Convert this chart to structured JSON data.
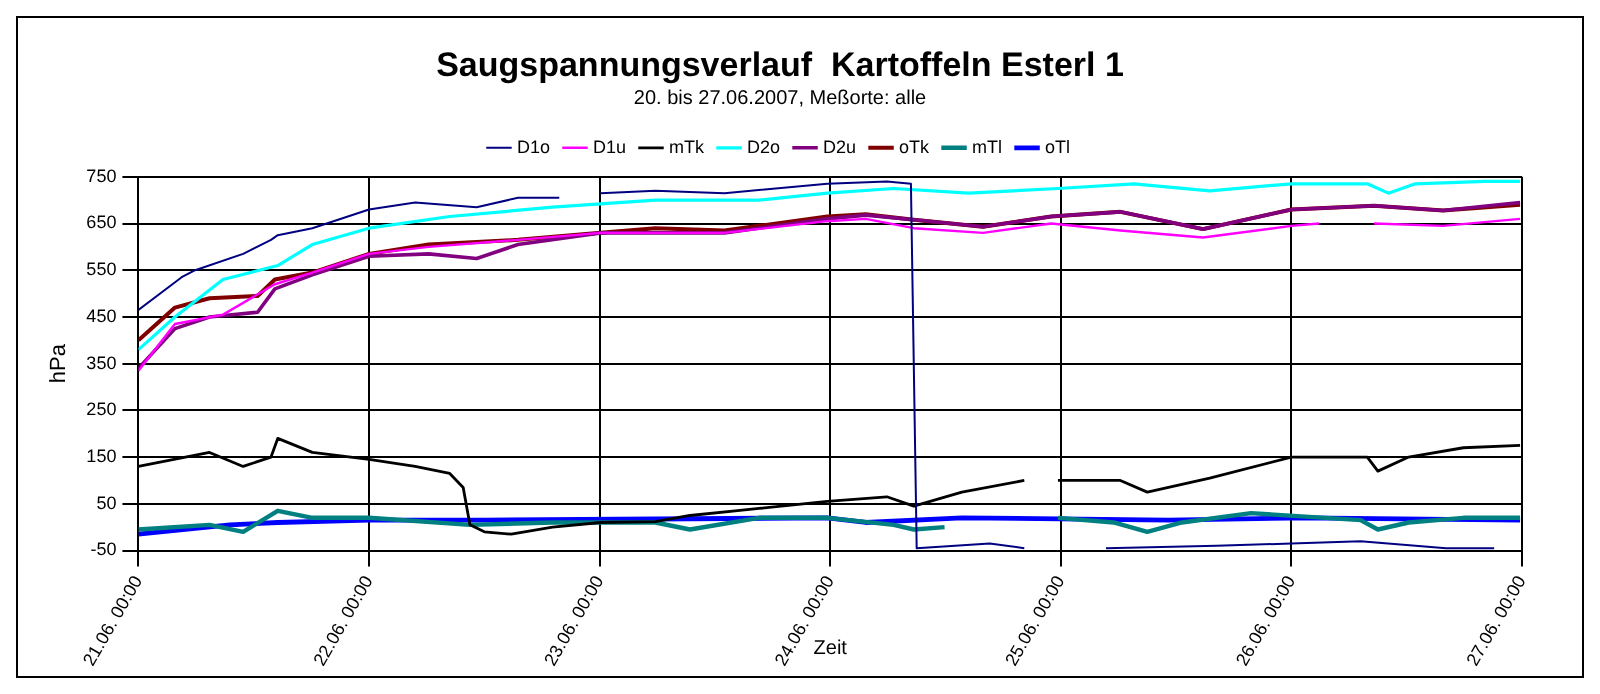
{
  "chart_data": {
    "type": "line",
    "title": "Saugspannungsverlauf  Kartoffeln Esterl 1",
    "subtitle": "20. bis 27.06.2007, Meßorte: alle",
    "xlabel": "Zeit",
    "ylabel": "hPa",
    "xlim": [
      "2007-06-21T00:00",
      "2007-06-27T00:00"
    ],
    "xticks": [
      {
        "value": "2007-06-21T00:00",
        "label": "21.06. 00:00"
      },
      {
        "value": "2007-06-22T00:00",
        "label": "22.06. 00:00"
      },
      {
        "value": "2007-06-23T00:00",
        "label": "23.06. 00:00"
      },
      {
        "value": "2007-06-24T00:00",
        "label": "24.06. 00:00"
      },
      {
        "value": "2007-06-25T00:00",
        "label": "25.06. 00:00"
      },
      {
        "value": "2007-06-26T00:00",
        "label": "26.06. 00:00"
      },
      {
        "value": "2007-06-27T00:00",
        "label": "27.06. 00:00"
      }
    ],
    "ylim": [
      -50,
      750
    ],
    "yticks": [
      -50,
      50,
      150,
      250,
      350,
      450,
      550,
      650,
      750
    ],
    "grid": true,
    "legend": "top",
    "line_style": "solid",
    "marker": "none",
    "series": [
      {
        "name": "D1o",
        "color": "#000080",
        "x": [
          "2007-06-21T00:00",
          "2007-06-21T04:30",
          "2007-06-21T05:54",
          "2007-06-21T10:54",
          "2007-06-21T13:48",
          "2007-06-21T14:30",
          "2007-06-21T18:06",
          "2007-06-22T00:00",
          "2007-06-22T04:48",
          "2007-06-22T11:12",
          "2007-06-22T15:30",
          "2007-06-22T19:48",
          "2007-06-22T22:00",
          "2007-06-23T00:06",
          "2007-06-23T05:48",
          "2007-06-23T13:00",
          "2007-06-23T23:42",
          "2007-06-24T05:54",
          "2007-06-24T08:24",
          "2007-06-24T09:00",
          "2007-06-24T16:36",
          "2007-06-24T20:12",
          "2007-06-25T00:30",
          "2007-06-25T04:42",
          "2007-06-25T16:12",
          "2007-06-26T00:00",
          "2007-06-26T07:12",
          "2007-06-26T16:06",
          "2007-06-26T21:06"
        ],
        "values": [
          465,
          535,
          550,
          585,
          615,
          625,
          640,
          680,
          695,
          685,
          705,
          705,
          null,
          715,
          720,
          715,
          735,
          740,
          735,
          -45,
          -35,
          -45,
          null,
          -45,
          -40,
          -35,
          -30,
          -45,
          -45
        ]
      },
      {
        "name": "D1u",
        "color": "#ff00ff",
        "x": [
          "2007-06-21T00:00",
          "2007-06-21T03:48",
          "2007-06-21T08:48",
          "2007-06-21T14:12",
          "2007-06-21T18:06",
          "2007-06-22T00:00",
          "2007-06-22T06:12",
          "2007-06-22T15:30",
          "2007-06-23T00:06",
          "2007-06-23T13:00",
          "2007-06-23T23:42",
          "2007-06-24T03:42",
          "2007-06-24T08:42",
          "2007-06-24T15:54",
          "2007-06-24T23:00",
          "2007-06-25T06:12",
          "2007-06-25T14:48",
          "2007-06-26T00:00",
          "2007-06-26T02:54",
          "2007-06-26T05:30",
          "2007-06-26T08:36",
          "2007-06-26T15:48",
          "2007-06-26T23:48"
        ],
        "values": [
          335,
          435,
          455,
          520,
          545,
          585,
          600,
          615,
          630,
          630,
          655,
          660,
          640,
          630,
          650,
          635,
          620,
          645,
          650,
          null,
          650,
          645,
          660
        ]
      },
      {
        "name": "mTk",
        "color": "#000000",
        "x": [
          "2007-06-21T00:00",
          "2007-06-21T07:24",
          "2007-06-21T10:54",
          "2007-06-21T13:48",
          "2007-06-21T14:30",
          "2007-06-21T18:06",
          "2007-06-22T00:00",
          "2007-06-22T04:48",
          "2007-06-22T08:24",
          "2007-06-22T09:48",
          "2007-06-22T10:30",
          "2007-06-22T12:00",
          "2007-06-22T14:48",
          "2007-06-22T19:06",
          "2007-06-23T00:06",
          "2007-06-23T05:48",
          "2007-06-23T09:24",
          "2007-06-23T16:36",
          "2007-06-23T23:42",
          "2007-06-24T05:54",
          "2007-06-24T08:42",
          "2007-06-24T13:42",
          "2007-06-24T20:12",
          "2007-06-24T22:00",
          "2007-06-24T23:42",
          "2007-06-25T06:12",
          "2007-06-25T09:00",
          "2007-06-25T15:30",
          "2007-06-26T00:00",
          "2007-06-26T07:54",
          "2007-06-26T09:00",
          "2007-06-26T12:12",
          "2007-06-26T17:54",
          "2007-06-26T23:48"
        ],
        "values": [
          130,
          160,
          130,
          150,
          190,
          160,
          145,
          130,
          115,
          85,
          5,
          -10,
          -15,
          0,
          10,
          12,
          25,
          40,
          55,
          65,
          45,
          75,
          100,
          null,
          100,
          100,
          75,
          105,
          150,
          150,
          120,
          150,
          170,
          175
        ]
      },
      {
        "name": "D2o",
        "color": "#00ffff",
        "x": [
          "2007-06-21T00:00",
          "2007-06-21T03:48",
          "2007-06-21T08:48",
          "2007-06-21T14:30",
          "2007-06-21T18:06",
          "2007-06-22T00:00",
          "2007-06-22T08:24",
          "2007-06-22T19:06",
          "2007-06-23T05:48",
          "2007-06-23T16:36",
          "2007-06-23T23:42",
          "2007-06-24T06:36",
          "2007-06-24T14:24",
          "2007-06-24T23:42",
          "2007-06-25T07:36",
          "2007-06-25T15:30",
          "2007-06-26T00:00",
          "2007-06-26T07:54",
          "2007-06-26T10:06",
          "2007-06-26T12:54",
          "2007-06-26T20:06",
          "2007-06-26T23:48"
        ],
        "values": [
          380,
          450,
          530,
          560,
          605,
          640,
          665,
          685,
          700,
          700,
          715,
          725,
          715,
          725,
          735,
          720,
          735,
          735,
          715,
          735,
          740,
          740
        ]
      },
      {
        "name": "D2u",
        "color": "#800080",
        "x": [
          "2007-06-21T00:00",
          "2007-06-21T03:48",
          "2007-06-21T07:24",
          "2007-06-21T12:24",
          "2007-06-21T14:12",
          "2007-06-21T18:06",
          "2007-06-22T00:00",
          "2007-06-22T06:12",
          "2007-06-22T11:12",
          "2007-06-22T15:30",
          "2007-06-23T00:06",
          "2007-06-23T13:00",
          "2007-06-23T23:42",
          "2007-06-24T03:42",
          "2007-06-24T08:42",
          "2007-06-24T15:54",
          "2007-06-24T23:00",
          "2007-06-25T06:12",
          "2007-06-25T14:48",
          "2007-06-26T00:00",
          "2007-06-26T08:36",
          "2007-06-26T15:48",
          "2007-06-26T23:48"
        ],
        "values": [
          340,
          425,
          450,
          460,
          510,
          540,
          580,
          585,
          575,
          605,
          630,
          630,
          660,
          668,
          658,
          643,
          665,
          675,
          638,
          680,
          688,
          678,
          695
        ]
      },
      {
        "name": "oTk",
        "color": "#800000",
        "x": [
          "2007-06-21T00:00",
          "2007-06-21T03:48",
          "2007-06-21T07:24",
          "2007-06-21T12:24",
          "2007-06-21T14:12",
          "2007-06-21T18:06",
          "2007-06-22T00:00",
          "2007-06-22T06:12",
          "2007-06-22T15:30",
          "2007-06-23T00:06",
          "2007-06-23T05:48",
          "2007-06-23T13:00",
          "2007-06-23T23:42",
          "2007-06-24T03:42",
          "2007-06-24T08:42",
          "2007-06-24T15:54",
          "2007-06-24T23:00",
          "2007-06-25T06:12",
          "2007-06-25T14:48",
          "2007-06-26T00:00",
          "2007-06-26T08:36",
          "2007-06-26T15:48",
          "2007-06-26T23:48"
        ],
        "values": [
          400,
          470,
          490,
          495,
          530,
          545,
          585,
          605,
          615,
          630,
          640,
          635,
          665,
          670,
          658,
          643,
          665,
          675,
          638,
          680,
          688,
          678,
          690
        ]
      },
      {
        "name": "mTl",
        "color": "#008080",
        "x": [
          "2007-06-21T00:00",
          "2007-06-21T07:24",
          "2007-06-21T10:54",
          "2007-06-21T14:30",
          "2007-06-21T18:06",
          "2007-06-22T00:00",
          "2007-06-22T10:30",
          "2007-06-22T19:06",
          "2007-06-23T05:48",
          "2007-06-23T09:24",
          "2007-06-23T16:36",
          "2007-06-23T23:42",
          "2007-06-24T06:36",
          "2007-06-24T08:42",
          "2007-06-24T11:54",
          "2007-06-24T18:00",
          "2007-06-24T23:42",
          "2007-06-25T05:30",
          "2007-06-25T09:00",
          "2007-06-25T12:36",
          "2007-06-25T19:48",
          "2007-06-26T07:12",
          "2007-06-26T09:00",
          "2007-06-26T12:12",
          "2007-06-26T17:54",
          "2007-06-26T23:48"
        ],
        "values": [
          -5,
          5,
          -10,
          35,
          20,
          20,
          5,
          10,
          10,
          -5,
          20,
          20,
          5,
          -5,
          0,
          null,
          20,
          10,
          -10,
          10,
          30,
          15,
          -5,
          10,
          20,
          20
        ]
      },
      {
        "name": "oTl",
        "color": "#0000ff",
        "x": [
          "2007-06-21T00:00",
          "2007-06-21T09:30",
          "2007-06-21T14:30",
          "2007-06-22T00:00",
          "2007-06-22T12:00",
          "2007-06-23T23:42",
          "2007-06-24T03:42",
          "2007-06-24T13:42",
          "2007-06-25T11:12",
          "2007-06-26T01:30",
          "2007-06-26T23:48"
        ],
        "values": [
          -15,
          5,
          10,
          15,
          15,
          20,
          10,
          20,
          15,
          20,
          15
        ]
      }
    ]
  }
}
